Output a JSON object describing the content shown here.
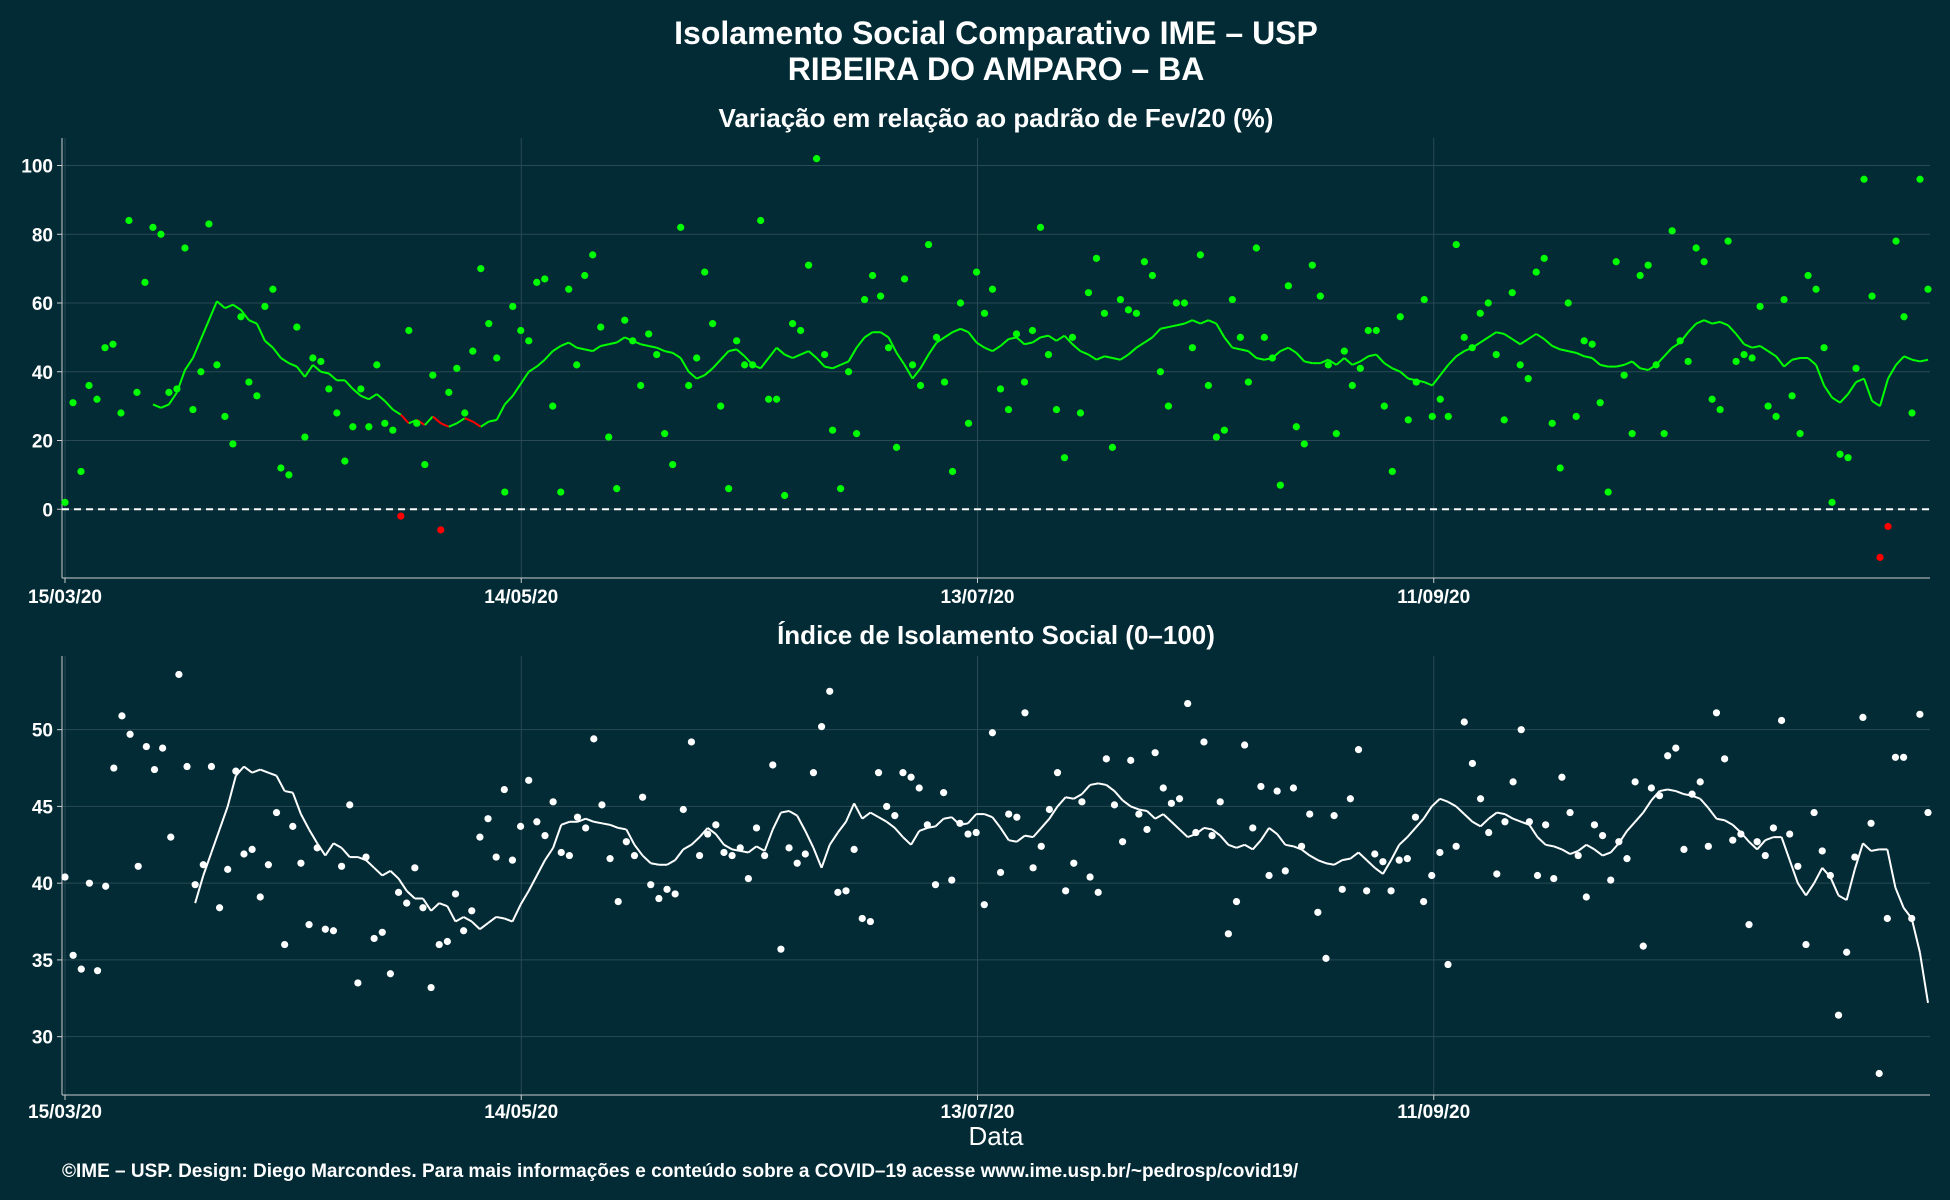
{
  "page": {
    "title_line1": "Isolamento Social Comparativo IME – USP",
    "title_line2": "RIBEIRA DO AMPARO – BA",
    "xlabel": "Data",
    "footer": "©IME – USP. Design: Diego Marcondes. Para mais informações e conteúdo sobre a COVID–19 acesse www.ime.usp.br/~pedrosp/covid19/"
  },
  "colors": {
    "background": "#022b35",
    "grid": "#2a4a55",
    "positive": "#00ff00",
    "negative": "#ff0000",
    "index_series": "#ffffff",
    "reference_line": "#ffffff"
  },
  "chart_data": [
    {
      "type": "scatter",
      "title": "Variação em relação ao padrão de Fev/20 (%)",
      "x_start": "15/03/20",
      "x_end": "15/11/20",
      "x_ticks": [
        "15/03/20",
        "14/05/20",
        "13/07/20",
        "11/09/20"
      ],
      "y_ticks": [
        0,
        20,
        40,
        60,
        80,
        100
      ],
      "ylim": [
        -20,
        108
      ],
      "reference_line": 0,
      "grid": true,
      "series": [
        {
          "values": [
            2,
            31,
            11,
            36,
            32,
            47,
            48,
            28,
            84,
            34,
            66,
            82,
            80,
            34,
            35,
            76,
            29,
            40,
            83,
            42,
            27,
            19,
            56,
            37,
            33,
            59,
            64,
            12,
            10,
            53,
            21,
            44,
            43,
            35,
            28,
            14,
            24,
            35,
            24,
            42,
            25,
            23,
            -2,
            52,
            25,
            13,
            39,
            -6,
            34,
            41,
            28,
            46,
            70,
            54,
            44,
            5,
            59,
            52,
            49,
            66,
            67,
            30,
            5,
            64,
            42,
            68,
            74,
            53,
            21,
            6,
            55,
            49,
            36,
            51,
            45,
            22,
            13,
            82,
            36,
            44,
            69,
            54,
            30,
            6,
            49,
            42,
            42,
            84,
            32,
            32,
            4,
            54,
            52,
            71,
            102,
            45,
            23,
            6,
            40,
            22,
            61,
            68,
            62,
            47,
            18,
            67,
            42,
            36,
            77,
            50,
            37,
            11,
            60,
            25,
            69,
            57,
            64,
            35,
            29,
            51,
            37,
            52,
            82,
            45,
            29,
            15,
            50,
            28,
            63,
            73,
            57,
            18,
            61,
            58,
            57,
            72,
            68,
            40,
            30,
            60,
            60,
            47,
            74,
            36,
            21,
            23,
            61,
            50,
            37,
            76,
            50,
            44,
            7,
            65,
            24,
            19,
            71,
            62,
            42,
            22,
            46,
            36,
            41,
            52,
            52,
            30,
            11,
            56,
            26,
            37,
            61,
            27,
            32,
            27,
            77,
            50,
            47,
            57,
            60,
            45,
            26,
            63,
            42,
            38,
            69,
            73,
            25,
            12,
            60,
            27,
            49,
            48,
            31,
            5,
            72,
            39,
            22,
            68,
            71,
            42,
            22,
            81,
            49,
            43,
            76,
            72,
            32,
            29,
            78,
            43,
            45,
            44,
            59,
            30,
            27,
            61,
            33,
            22,
            68,
            64,
            47,
            2,
            16,
            15,
            41,
            96,
            62,
            -14,
            -5,
            78,
            56,
            28,
            96,
            64
          ]
        },
        {
          "name_hidden": true,
          "values": [
            30.5,
            29.5,
            30.5,
            34,
            40.5,
            44,
            49.5,
            55,
            60.5,
            58.5,
            59.5,
            58,
            55,
            54,
            49,
            47,
            44,
            42.5,
            41.5,
            38.5,
            42,
            40,
            39.5,
            37.5,
            37.5,
            35,
            33,
            32,
            33.5,
            31.5,
            29,
            27.5,
            25,
            26,
            24.5,
            27,
            25,
            24,
            25,
            26.5,
            25.5,
            24,
            25.5,
            26,
            30.5,
            33,
            36.5,
            40,
            41.5,
            43.5,
            46,
            47.5,
            48.5,
            47,
            46.5,
            46,
            47.5,
            48,
            48.5,
            50,
            49,
            48,
            47.5,
            47,
            46,
            45.5,
            44,
            40,
            38,
            39,
            41,
            43.5,
            46,
            46.5,
            44.5,
            42,
            41,
            44,
            47,
            45,
            44,
            45,
            46,
            44,
            41.5,
            41,
            42,
            43,
            47,
            50,
            51.5,
            51.5,
            50,
            45.5,
            42,
            38,
            41,
            45,
            48.5,
            50,
            51.5,
            52.5,
            51.5,
            48.5,
            47,
            46,
            47.5,
            49.5,
            50,
            48,
            48.5,
            50,
            50.5,
            49,
            50.5,
            48,
            46,
            45,
            43.5,
            44.5,
            44,
            43.5,
            45,
            47,
            48.5,
            50,
            52.5,
            53,
            53.5,
            54,
            55,
            54,
            55,
            54,
            50,
            47,
            46.5,
            46,
            44,
            43.5,
            44,
            46,
            47,
            45.5,
            43,
            42.5,
            42.5,
            43.5,
            42,
            44,
            42,
            43,
            44.5,
            45,
            42.5,
            41,
            40,
            38,
            37.5,
            37,
            36,
            39,
            42,
            44.5,
            46,
            47,
            48.5,
            50,
            51.5,
            51,
            49.5,
            48,
            49.5,
            51,
            49.5,
            47.5,
            46.5,
            46,
            45.5,
            44.5,
            44,
            42,
            41.5,
            41.5,
            42,
            43,
            41,
            40.5,
            42,
            44.5,
            47,
            48.5,
            51.5,
            54,
            55,
            54,
            54.5,
            53.5,
            51,
            48,
            47,
            47.5,
            46,
            44.5,
            41.5,
            43.5,
            44,
            44,
            42,
            36,
            32.5,
            31,
            33.5,
            37,
            38,
            31.5,
            30,
            38,
            42,
            44.5,
            43.5,
            43,
            43.5
          ]
        }
      ]
    },
    {
      "type": "scatter",
      "title": "Índice de Isolamento Social (0–100)",
      "x_start": "15/03/20",
      "x_end": "15/11/20",
      "x_ticks": [
        "15/03/20",
        "14/05/20",
        "13/07/20",
        "11/09/20"
      ],
      "y_ticks": [
        30,
        35,
        40,
        45,
        50
      ],
      "ylim": [
        26.2,
        54.8
      ],
      "grid": true,
      "series": [
        {
          "values": [
            40.4,
            35.3,
            34.4,
            40,
            34.3,
            39.8,
            47.5,
            50.9,
            49.7,
            41.1,
            48.9,
            47.4,
            48.8,
            43,
            53.6,
            47.6,
            39.9,
            41.2,
            47.6,
            38.4,
            40.9,
            47.3,
            41.9,
            42.2,
            39.1,
            41.2,
            44.6,
            36,
            43.7,
            41.3,
            37.3,
            42.3,
            37,
            36.9,
            41.1,
            45.1,
            33.5,
            41.7,
            36.4,
            36.8,
            34.1,
            39.4,
            38.7,
            41,
            38.4,
            33.2,
            36,
            36.2,
            39.3,
            36.9,
            38.2,
            43,
            44.2,
            41.7,
            46.1,
            41.5,
            43.7,
            46.7,
            44,
            43.1,
            45.3,
            42,
            41.8,
            44.3,
            43.6,
            49.4,
            45.1,
            41.6,
            38.8,
            42.7,
            41.8,
            45.6,
            39.9,
            39,
            39.6,
            39.3,
            44.8,
            49.2,
            41.8,
            43.2,
            43.8,
            42,
            41.8,
            42.3,
            40.3,
            43.6,
            41.8,
            47.7,
            35.7,
            42.3,
            41.3,
            41.9,
            47.2,
            50.2,
            52.5,
            39.4,
            39.5,
            42.2,
            37.7,
            37.5,
            47.2,
            45,
            44.4,
            47.2,
            46.9,
            46.2,
            43.8,
            39.9,
            45.9,
            40.2,
            43.9,
            43.2,
            43.3,
            38.6,
            49.8,
            40.7,
            44.5,
            44.3,
            51.1,
            41,
            42.4,
            44.8,
            47.2,
            39.5,
            41.3,
            45.3,
            40.4,
            39.4,
            48.1,
            45.1,
            42.7,
            48,
            44.5,
            43.5,
            48.5,
            46.2,
            45.2,
            45.5,
            51.7,
            43.3,
            49.2,
            43.1,
            45.3,
            36.7,
            38.8,
            49,
            43.6,
            46.3,
            40.5,
            46,
            40.8,
            46.2,
            42.4,
            44.5,
            38.1,
            35.1,
            44.4,
            39.6,
            45.5,
            48.7,
            39.5,
            41.9,
            41.4,
            39.5,
            41.5,
            41.6,
            44.3,
            38.8,
            40.5,
            42,
            34.7,
            42.4,
            50.5,
            47.8,
            45.5,
            43.3,
            40.6,
            44,
            46.6,
            50,
            44,
            40.5,
            43.8,
            40.3,
            46.9,
            44.6,
            41.8,
            39.1,
            43.8,
            43.1,
            40.2,
            42.7,
            41.6,
            46.6,
            35.9,
            46.2,
            45.7,
            48.3,
            48.8,
            42.2,
            45.8,
            46.6,
            42.4,
            51.1,
            48.1,
            42.8,
            43.2,
            37.3,
            42.7,
            41.8,
            43.6,
            50.6,
            43.2,
            41.1,
            36,
            44.6,
            42.1,
            40.5,
            31.4,
            35.5,
            41.7,
            50.8,
            43.9,
            27.6,
            37.7,
            48.2,
            48.2,
            37.7,
            51,
            44.6
          ]
        },
        {
          "values": [
            38.7,
            40.5,
            42,
            43.5,
            45,
            47,
            47.6,
            47.2,
            47.4,
            47.2,
            47,
            46,
            45.9,
            44.5,
            43.5,
            42.6,
            41.8,
            42.6,
            42.3,
            41.7,
            41.7,
            41.5,
            41,
            40.5,
            40.8,
            40.3,
            39.5,
            39,
            39,
            38.2,
            38.7,
            38.5,
            37.5,
            37.8,
            37.5,
            37,
            37.4,
            37.8,
            37.7,
            37.5,
            38.6,
            39.5,
            40.5,
            41.5,
            42.3,
            43.8,
            44,
            44,
            44.2,
            44,
            43.9,
            43.8,
            43.6,
            43.5,
            42.5,
            41.8,
            41.3,
            41.2,
            41.2,
            41.5,
            42.2,
            42.5,
            43,
            43.6,
            43.2,
            42.5,
            42.2,
            42.1,
            42,
            42.4,
            42.1,
            43.5,
            44.6,
            44.7,
            44.4,
            43.4,
            42.3,
            41,
            42.5,
            43.3,
            44,
            45.2,
            44.2,
            44.6,
            44.3,
            44,
            43.6,
            43,
            42.5,
            43.4,
            43.6,
            43.7,
            44.2,
            44.3,
            43.8,
            43.9,
            44.5,
            44.5,
            44.3,
            43.6,
            42.8,
            42.7,
            43.1,
            43,
            43.6,
            44.2,
            45,
            45.6,
            45.5,
            45.8,
            46.4,
            46.5,
            46.4,
            46,
            45.4,
            45,
            44.8,
            44.7,
            44.2,
            44.5,
            44,
            43.5,
            43,
            43.2,
            43.6,
            43.5,
            43.1,
            42.5,
            42.3,
            42.5,
            42.2,
            42.8,
            43.6,
            43.2,
            42.5,
            42.4,
            42.2,
            41.8,
            41.5,
            41.3,
            41.2,
            41.5,
            41.6,
            42,
            41.5,
            41,
            40.6,
            41.5,
            42.5,
            43,
            43.6,
            44.2,
            45,
            45.5,
            45.3,
            45,
            44.5,
            44,
            43.7,
            44.2,
            44.6,
            44.5,
            44.2,
            44,
            43.8,
            43,
            42.5,
            42.4,
            42.2,
            41.9,
            42.1,
            42.5,
            42.2,
            41.8,
            42,
            42.6,
            43.4,
            44,
            44.6,
            45.4,
            46,
            46.1,
            46,
            45.8,
            45.7,
            45.5,
            44.9,
            44.2,
            44.1,
            43.8,
            43.3,
            42.7,
            42.2,
            42.8,
            43,
            43,
            41.5,
            40,
            39.2,
            40,
            41,
            40.4,
            39.2,
            38.9,
            40.9,
            42.6,
            42.1,
            42.2,
            42.2,
            39.7,
            38.4,
            37.7,
            35.5,
            32.2
          ]
        }
      ]
    }
  ]
}
